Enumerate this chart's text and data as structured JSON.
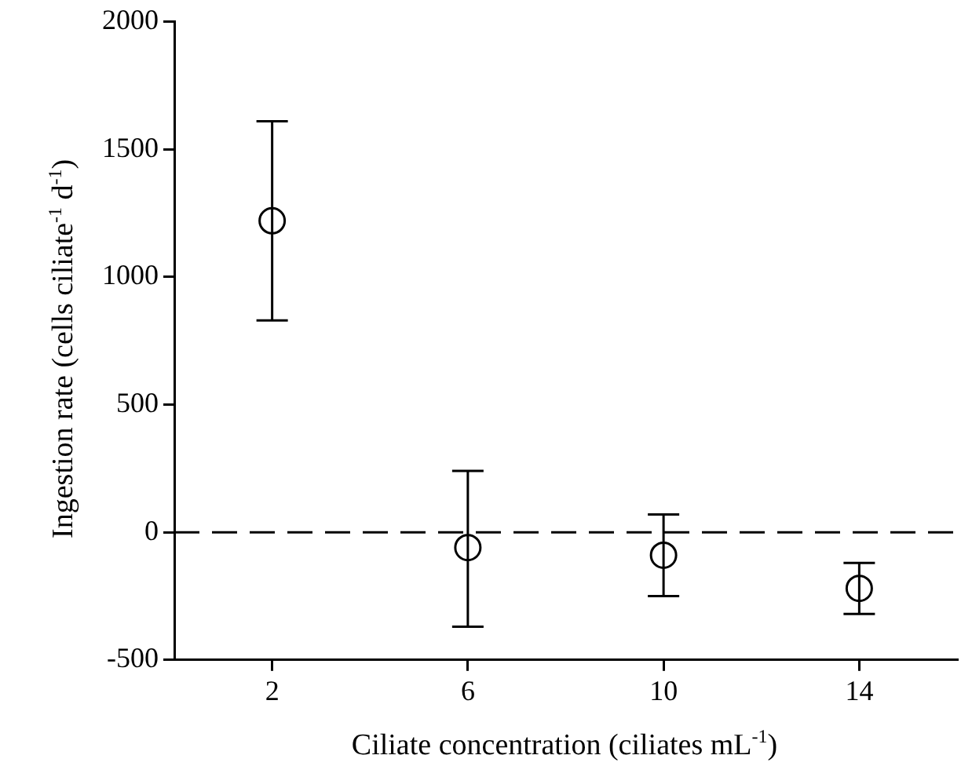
{
  "chart_data": {
    "type": "scatter",
    "xlabel": "Ciliate concentration (ciliates mL$^{-1}$)",
    "ylabel": "Ingestion rate (cells ciliate$^{-1}$ d$^{-1}$)",
    "x": [
      2,
      6,
      10,
      14
    ],
    "values": [
      1220,
      -60,
      -90,
      -220
    ],
    "errors": [
      [
        830,
        1610
      ],
      [
        -370,
        240
      ],
      [
        -250,
        70
      ],
      [
        -320,
        -120
      ]
    ],
    "color": "#000000",
    "marker": "circle",
    "grid": false,
    "legend": false,
    "xlim": [
      0,
      16
    ],
    "xticks": [
      2,
      6,
      10,
      14
    ],
    "ylim": [
      -500,
      2000
    ],
    "yticks": [
      -500,
      0,
      500,
      1000,
      1500,
      2000
    ],
    "ref_lines": [
      {
        "axis": "y",
        "value": 0,
        "line_style": "dashed",
        "color": "#000000"
      }
    ]
  }
}
